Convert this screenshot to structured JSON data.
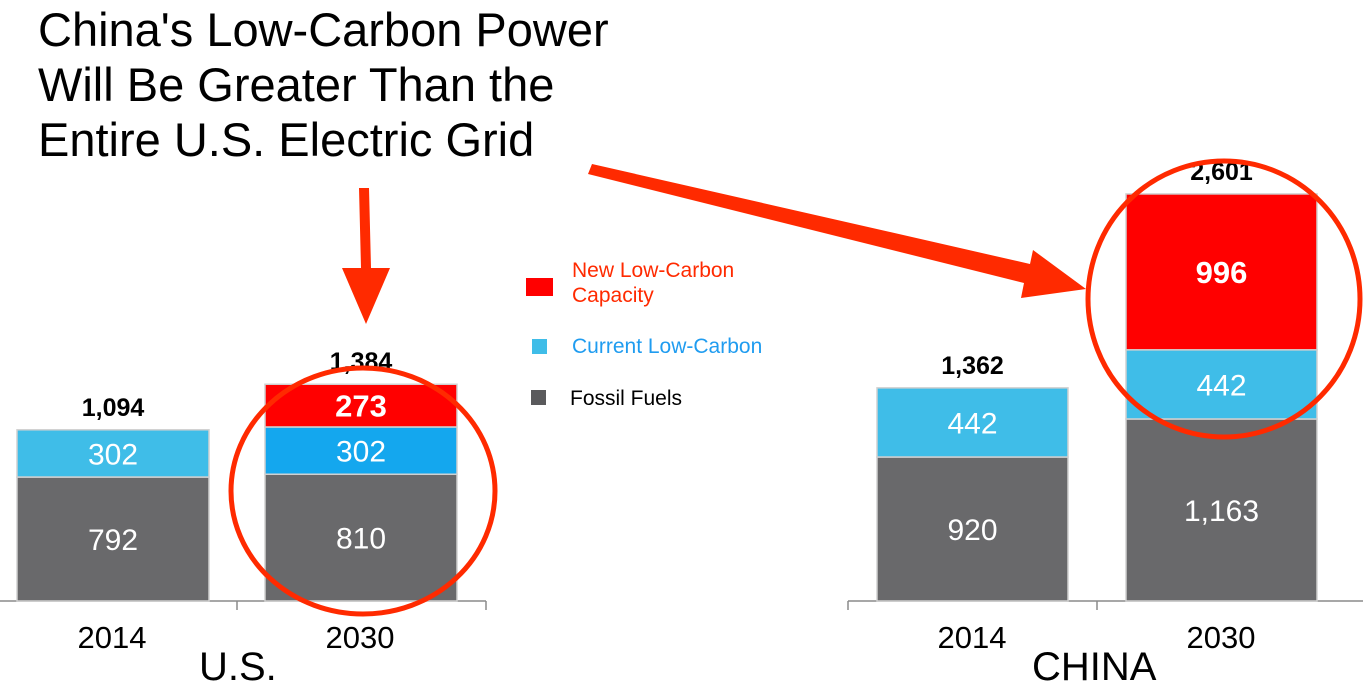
{
  "title": {
    "lines": [
      "China's Low-Carbon Power",
      "Will Be Greater Than the",
      "Entire U.S. Electric Grid"
    ]
  },
  "legend": {
    "new_low_carbon": "New Low-Carbon Capacity",
    "current_low_carbon": "Current Low-Carbon",
    "fossil_fuels": "Fossil Fuels"
  },
  "colors": {
    "fossil": "#69696b",
    "current": "#3fbde8",
    "current_alt": "#14a7ee",
    "new": "#ff0000",
    "annotation": "#ff2a00"
  },
  "chart_data": [
    {
      "type": "bar",
      "stacked": true,
      "categories": [
        "2014",
        "2030"
      ],
      "series": [
        {
          "name": "Fossil Fuels",
          "values": [
            792,
            810
          ]
        },
        {
          "name": "Current Low-Carbon",
          "values": [
            302,
            302
          ]
        },
        {
          "name": "New Low-Carbon Capacity",
          "values": [
            0,
            273
          ]
        }
      ],
      "totals": [
        "1,094",
        "1,384"
      ],
      "value_labels": {
        "Fossil Fuels": [
          "792",
          "810"
        ],
        "Current Low-Carbon": [
          "302",
          "302"
        ],
        "New Low-Carbon Capacity": [
          "",
          "273"
        ]
      },
      "xlabel": "U.S."
    },
    {
      "type": "bar",
      "stacked": true,
      "categories": [
        "2014",
        "2030"
      ],
      "series": [
        {
          "name": "Fossil Fuels",
          "values": [
            920,
            1163
          ]
        },
        {
          "name": "Current Low-Carbon",
          "values": [
            442,
            442
          ]
        },
        {
          "name": "New Low-Carbon Capacity",
          "values": [
            0,
            996
          ]
        }
      ],
      "totals": [
        "1,362",
        "2,601"
      ],
      "value_labels": {
        "Fossil Fuels": [
          "920",
          "1,163"
        ],
        "Current Low-Carbon": [
          "442",
          "442"
        ],
        "New Low-Carbon Capacity": [
          "",
          "996"
        ]
      },
      "xlabel": "CHINA"
    }
  ]
}
